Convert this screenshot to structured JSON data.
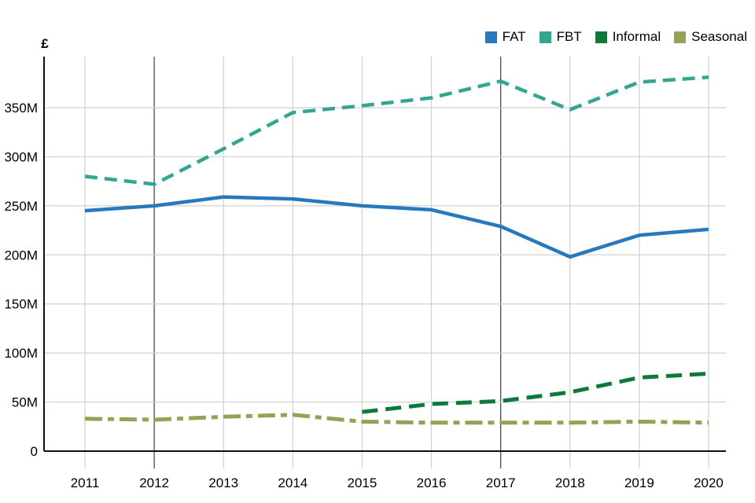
{
  "chart_data": {
    "type": "line",
    "title": "",
    "ylabel": "£",
    "xlabel": "",
    "x": [
      2011,
      2012,
      2013,
      2014,
      2015,
      2016,
      2017,
      2018,
      2019,
      2020
    ],
    "x_tick_labels": [
      "2011",
      "2012",
      "2013",
      "2014",
      "2015",
      "2016",
      "2017",
      "2018",
      "2019",
      "2020"
    ],
    "y_ticks": [
      0,
      50,
      100,
      150,
      200,
      250,
      300,
      350
    ],
    "y_tick_labels": [
      "0",
      "50M",
      "100M",
      "150M",
      "200M",
      "250M",
      "300M",
      "350M"
    ],
    "y_unit": "millions GBP",
    "ylim": [
      0,
      390
    ],
    "grid": {
      "horizontal": true,
      "vertical": true,
      "highlighted_x": [
        2012,
        2017
      ]
    },
    "legend_position": "top-right",
    "series": [
      {
        "name": "FAT",
        "color": "#2878bd",
        "style": "solid",
        "values": [
          245,
          250,
          259,
          257,
          250,
          246,
          229,
          198,
          220,
          226
        ]
      },
      {
        "name": "FBT",
        "color": "#33a692",
        "style": "dashed",
        "values": [
          280,
          272,
          308,
          345,
          352,
          360,
          377,
          348,
          376,
          381
        ]
      },
      {
        "name": "Informal",
        "color": "#0e7a3a",
        "style": "long-dash",
        "values": [
          null,
          null,
          null,
          null,
          40,
          48,
          51,
          60,
          75,
          79
        ]
      },
      {
        "name": "Seasonal",
        "color": "#94a256",
        "style": "dash-dot",
        "values": [
          33,
          32,
          35,
          37,
          30,
          29,
          29,
          29,
          30,
          29
        ]
      }
    ],
    "colors": {
      "grid_light": "#d0d0d0",
      "grid_dark": "#3d3d3d",
      "axis": "#111111",
      "text": "#000000"
    }
  }
}
